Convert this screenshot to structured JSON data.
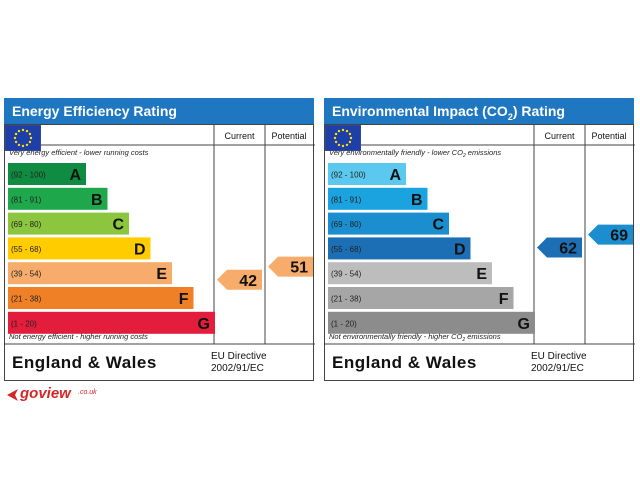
{
  "chart_data": [
    {
      "type": "bar",
      "title": "Energy Efficiency Rating",
      "columns": [
        "Current",
        "Potential"
      ],
      "top_caption": "Very energy efficient - lower running costs",
      "bottom_caption": "Not energy efficient - higher running costs",
      "bands": [
        {
          "range": "(92 - 100)",
          "letter": "A",
          "color": "#0f8c42"
        },
        {
          "range": "(81 - 91)",
          "letter": "B",
          "color": "#1fa84b"
        },
        {
          "range": "(69 - 80)",
          "letter": "C",
          "color": "#8cc63f"
        },
        {
          "range": "(55 - 68)",
          "letter": "D",
          "color": "#ffcc00"
        },
        {
          "range": "(39 - 54)",
          "letter": "E",
          "color": "#f7ac6b"
        },
        {
          "range": "(21 - 38)",
          "letter": "F",
          "color": "#f08025"
        },
        {
          "range": "(1 - 20)",
          "letter": "G",
          "color": "#e31d3c"
        }
      ],
      "current": {
        "value": 42,
        "band": "E",
        "color": "#f7ac6b"
      },
      "potential": {
        "value": 51,
        "band": "E",
        "color": "#f7ac6b"
      }
    },
    {
      "type": "bar",
      "title_main": "Environmental Impact (CO",
      "title_sub": "2",
      "title_end": ") Rating",
      "columns": [
        "Current",
        "Potential"
      ],
      "top_caption": "Very environmentally friendly - lower CO",
      "top_caption_sub": "2",
      "top_caption_end": " emissions",
      "bottom_caption": "Not environmentally friendly - higher CO",
      "bottom_caption_sub": "2",
      "bottom_caption_end": " emissions",
      "bands": [
        {
          "range": "(92 - 100)",
          "letter": "A",
          "color": "#5bc8f0"
        },
        {
          "range": "(81 - 91)",
          "letter": "B",
          "color": "#1ba3e0"
        },
        {
          "range": "(69 - 80)",
          "letter": "C",
          "color": "#1b8ed0"
        },
        {
          "range": "(55 - 68)",
          "letter": "D",
          "color": "#1c6fb4"
        },
        {
          "range": "(39 - 54)",
          "letter": "E",
          "color": "#bdbdbd"
        },
        {
          "range": "(21 - 38)",
          "letter": "F",
          "color": "#a6a6a6"
        },
        {
          "range": "(1 - 20)",
          "letter": "G",
          "color": "#8c8c8c"
        }
      ],
      "current": {
        "value": 62,
        "band": "D",
        "color": "#1c6fb4"
      },
      "potential": {
        "value": 69,
        "band": "C",
        "color": "#1b8ed0"
      }
    }
  ],
  "footer": {
    "region": "England & Wales",
    "directive_line1": "EU Directive",
    "directive_line2": "2002/91/EC"
  },
  "logo": {
    "name": "goview",
    "domain": ".co.uk",
    "color": "#d42626"
  },
  "colors": {
    "title_bar": "#1f77c2",
    "eu_flag": "#1f3fa8",
    "eu_stars": "#ffdd00"
  }
}
